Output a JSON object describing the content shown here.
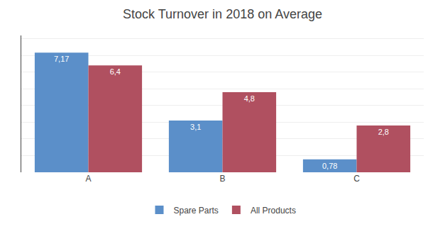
{
  "chart_data": {
    "type": "bar",
    "title": "Stock Turnover in 2018 on Average",
    "categories": [
      "A",
      "B",
      "C"
    ],
    "series": [
      {
        "name": "Spare Parts",
        "color": "#5B8FC9",
        "values": [
          7.17,
          3.1,
          0.78
        ],
        "value_labels": [
          "7,17",
          "3,1",
          "0,78"
        ]
      },
      {
        "name": "All Products",
        "color": "#B05060",
        "values": [
          6.4,
          4.8,
          2.8
        ],
        "value_labels": [
          "6,4",
          "4,8",
          "2,8"
        ]
      }
    ],
    "ylim": [
      0,
      8.2
    ],
    "yticks": [
      0,
      1,
      2,
      3,
      4,
      5,
      6,
      7,
      8
    ],
    "grid": true,
    "legend": "bottom",
    "data_labels": true,
    "tick_labels": "x"
  }
}
